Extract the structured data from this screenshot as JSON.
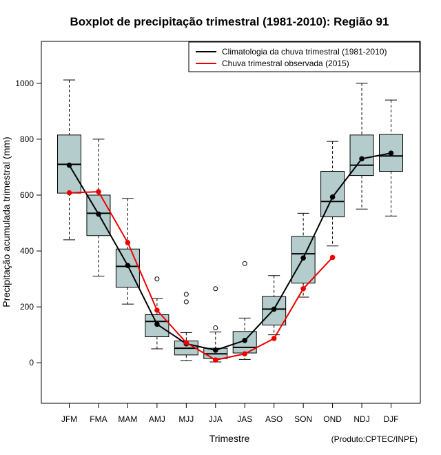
{
  "chart_data": {
    "type": "boxplot",
    "title": "Boxplot de precipitação trimestral (1981-2010): Região 91",
    "xlabel": "Trimestre",
    "ylabel": "Precipitação acumulada trimestral (mm)",
    "credit": "(Produto:CPTEC/INPE)",
    "ylim": [
      -145,
      1150
    ],
    "yticks": [
      0,
      200,
      400,
      600,
      800,
      1000
    ],
    "categories": [
      "JFM",
      "FMA",
      "MAM",
      "AMJ",
      "MJJ",
      "JJA",
      "JAS",
      "ASO",
      "SON",
      "OND",
      "NDJ",
      "DJF"
    ],
    "boxes": [
      {
        "low": 440,
        "q1": 607,
        "median": 710,
        "q3": 815,
        "high": 1012,
        "outliers": []
      },
      {
        "low": 310,
        "q1": 455,
        "median": 535,
        "q3": 600,
        "high": 800,
        "outliers": []
      },
      {
        "low": 210,
        "q1": 270,
        "median": 345,
        "q3": 407,
        "high": 588,
        "outliers": []
      },
      {
        "low": 50,
        "q1": 93,
        "median": 148,
        "q3": 172,
        "high": 230,
        "outliers": [
          300
        ]
      },
      {
        "low": 8,
        "q1": 28,
        "median": 52,
        "q3": 78,
        "high": 108,
        "outliers": [
          218,
          245
        ]
      },
      {
        "low": 3,
        "q1": 15,
        "median": 32,
        "q3": 52,
        "high": 110,
        "outliers": [
          125,
          265
        ]
      },
      {
        "low": 12,
        "q1": 35,
        "median": 55,
        "q3": 112,
        "high": 160,
        "outliers": [
          355
        ]
      },
      {
        "low": 100,
        "q1": 135,
        "median": 192,
        "q3": 237,
        "high": 312,
        "outliers": []
      },
      {
        "low": 235,
        "q1": 285,
        "median": 390,
        "q3": 452,
        "high": 535,
        "outliers": []
      },
      {
        "low": 418,
        "q1": 522,
        "median": 577,
        "q3": 685,
        "high": 792,
        "outliers": []
      },
      {
        "low": 550,
        "q1": 670,
        "median": 707,
        "q3": 815,
        "high": 1000,
        "outliers": []
      },
      {
        "low": 525,
        "q1": 685,
        "median": 740,
        "q3": 817,
        "high": 940,
        "outliers": []
      }
    ],
    "series": [
      {
        "name": "Climatologia da chuva trimestral (1981-2010)",
        "color": "#000000",
        "values": [
          707,
          532,
          348,
          138,
          68,
          45,
          80,
          192,
          375,
          593,
          730,
          750
        ]
      },
      {
        "name": "Chuva trimestral observada (2015)",
        "color": "#ee0000",
        "values": [
          608,
          612,
          430,
          188,
          72,
          10,
          32,
          87,
          265,
          377,
          null,
          null
        ]
      }
    ],
    "box_fill": "#b4cccc",
    "legend_position": "top-right"
  }
}
